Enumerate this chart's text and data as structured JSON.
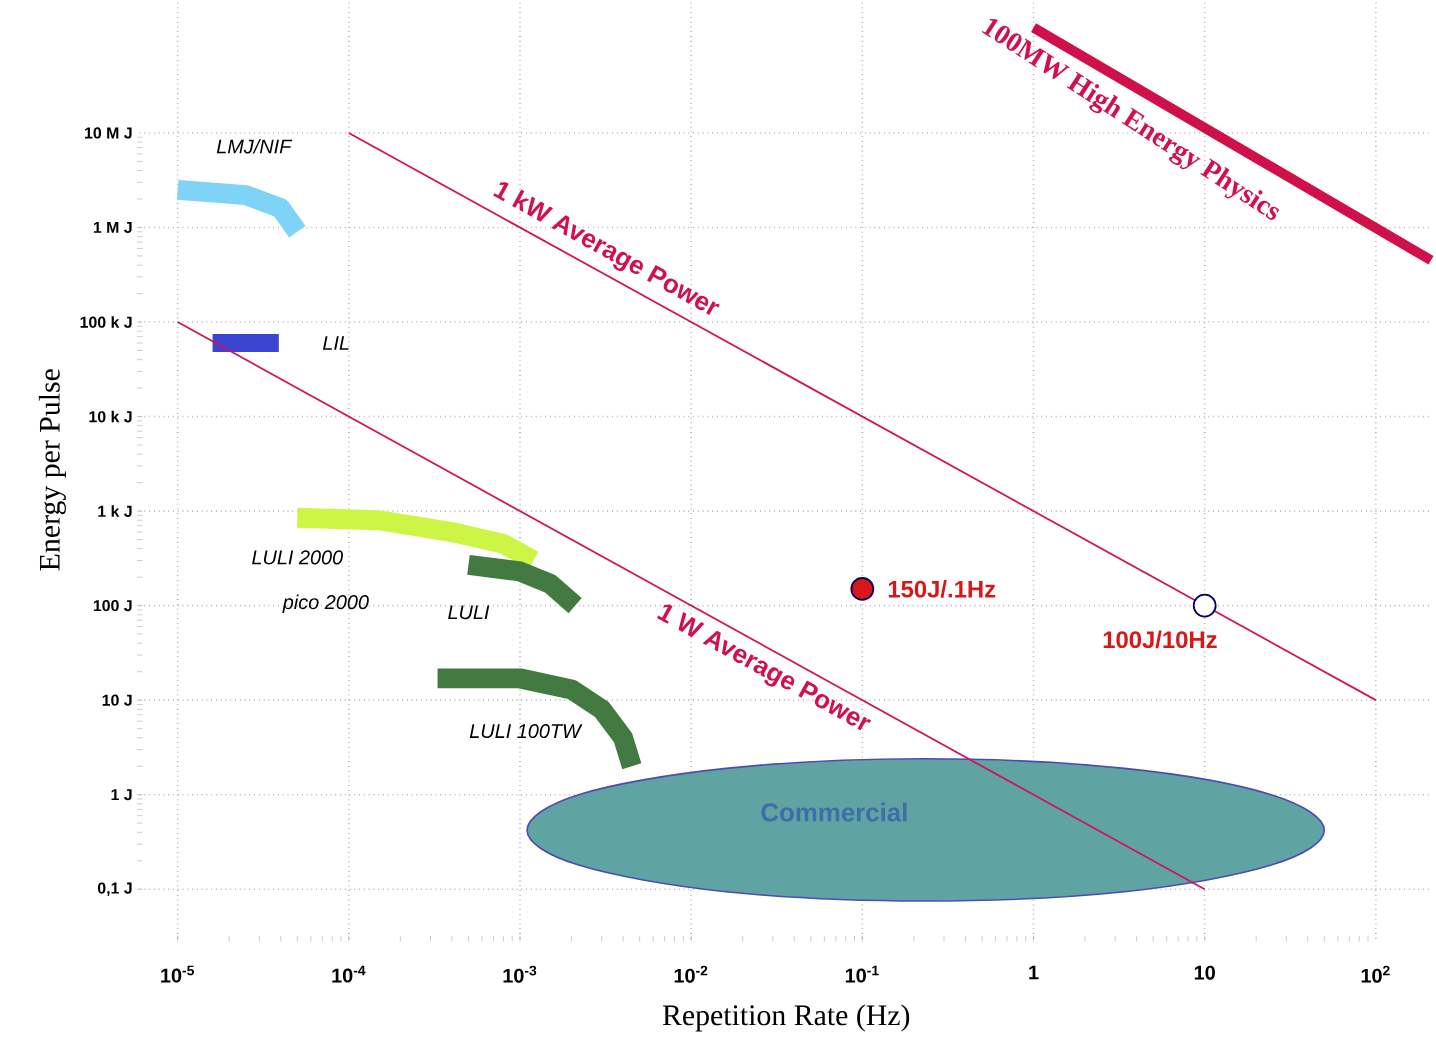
{
  "chart_data": {
    "type": "line",
    "xlabel": "Repetition Rate (Hz)",
    "ylabel": "Energy per Pulse",
    "log": "xy",
    "grid": true,
    "xlim": [
      6e-06,
      215
    ],
    "ylim": [
      0.03,
      250000000.0
    ],
    "xticks": [
      {
        "value": 1e-05,
        "label": "10$^{-5}$"
      },
      {
        "value": 0.0001,
        "label": "10$^{-4}$"
      },
      {
        "value": 0.001,
        "label": "10$^{-3}$"
      },
      {
        "value": 0.01,
        "label": "10$^{-2}$"
      },
      {
        "value": 0.1,
        "label": "10$^{-1}$"
      },
      1,
      10,
      {
        "value": 100,
        "label": "10$^{2}$"
      }
    ],
    "yticks": [
      {
        "value": 0.1,
        "label": "0,1 J"
      },
      {
        "value": 1,
        "label": "1 J"
      },
      {
        "value": 10,
        "label": "10 J"
      },
      {
        "value": 100,
        "label": "100 J"
      },
      {
        "value": 1000,
        "label": "1 k J"
      },
      {
        "value": 10000,
        "label": "10 k J"
      },
      {
        "value": 100000,
        "label": "100 k J"
      },
      {
        "value": 1000000,
        "label": "1 M J"
      },
      {
        "value": 10000000,
        "label": "10 M J"
      }
    ],
    "series": [
      {
        "type": "area",
        "name": "Commercial",
        "color": "#5fa3a3",
        "x": [
          50,
          24.5,
          3.4,
          0.23,
          0.016,
          0.0022,
          0.0011,
          0.0022,
          0.016,
          0.23,
          3.4,
          24.5
        ],
        "values": [
          0.42,
          1.0,
          1.9,
          2.4,
          1.9,
          1.0,
          0.42,
          0.18,
          0.094,
          0.075,
          0.094,
          0.18
        ]
      },
      {
        "name": "LMJ/NIF",
        "color": "#7fd3f7",
        "x": [
          1e-05,
          2.5e-05,
          4e-05,
          5e-05
        ],
        "values": [
          2500000.0,
          2200000.0,
          1600000.0,
          900000.0
        ]
      },
      {
        "name": "LIL",
        "color": "#3a44d0",
        "x": [
          1.6e-05,
          3.9e-05
        ],
        "values": [
          60000.0,
          60000.0
        ]
      },
      {
        "name": "LULI 2000",
        "color": "#ccf545",
        "x": [
          5e-05,
          0.00015,
          0.0004,
          0.0008,
          0.0012
        ],
        "values": [
          850,
          800,
          600,
          450,
          300
        ]
      },
      {
        "name": "LULI",
        "color": "#427a42",
        "x": [
          0.0005,
          0.001,
          0.0015,
          0.0021
        ],
        "values": [
          270,
          230,
          170,
          100
        ]
      },
      {
        "name": "LULI 100TW",
        "color": "#427a42",
        "x": [
          0.00033,
          0.001,
          0.002,
          0.003,
          0.004,
          0.0045
        ],
        "values": [
          17,
          17,
          13,
          8,
          4,
          2
        ]
      },
      {
        "name": "1 kW Average Power",
        "color": "#d0155a",
        "x": [
          0.0001,
          100
        ],
        "values": [
          10000000.0,
          10
        ]
      },
      {
        "name": "1 W Average Power",
        "color": "#d0155a",
        "x": [
          1e-05,
          10
        ],
        "values": [
          100000.0,
          0.1
        ]
      },
      {
        "name": "100MW High Energy Physics",
        "color": "#d0104a",
        "x": [
          1,
          210
        ],
        "values": [
          130000000.0,
          450000.0
        ]
      },
      {
        "type": "scatter",
        "marker": "circle",
        "colors": [
          "#d81818",
          "#ffffff"
        ],
        "x": [
          0.1,
          10
        ],
        "values": [
          150,
          100
        ]
      }
    ],
    "annotations": [
      "pico 2000",
      {
        "text": "150J/.1Hz",
        "x": 0.1,
        "y": 150
      },
      {
        "text": "100J/10Hz",
        "x": 10,
        "y": 100
      }
    ]
  }
}
